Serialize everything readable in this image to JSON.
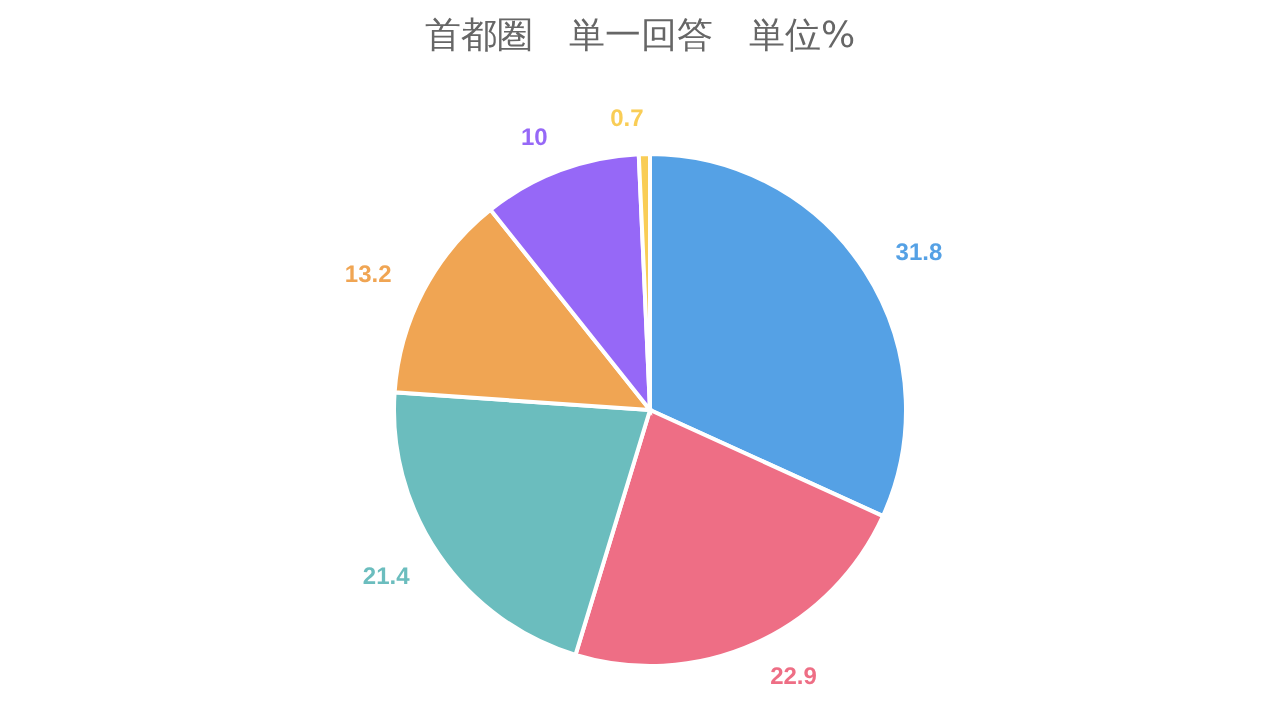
{
  "chart_data": {
    "type": "pie",
    "title": "首都圏　単一回答　単位%",
    "categories": [
      null,
      null,
      null,
      null,
      null,
      null
    ],
    "values": [
      31.8,
      22.9,
      21.4,
      13.2,
      10,
      0.7
    ],
    "colors": [
      "#55a1e5",
      "#ee6e85",
      "#6bbdbe",
      "#f0a553",
      "#9668f7",
      "#f9cd56"
    ],
    "data_labels": true
  }
}
